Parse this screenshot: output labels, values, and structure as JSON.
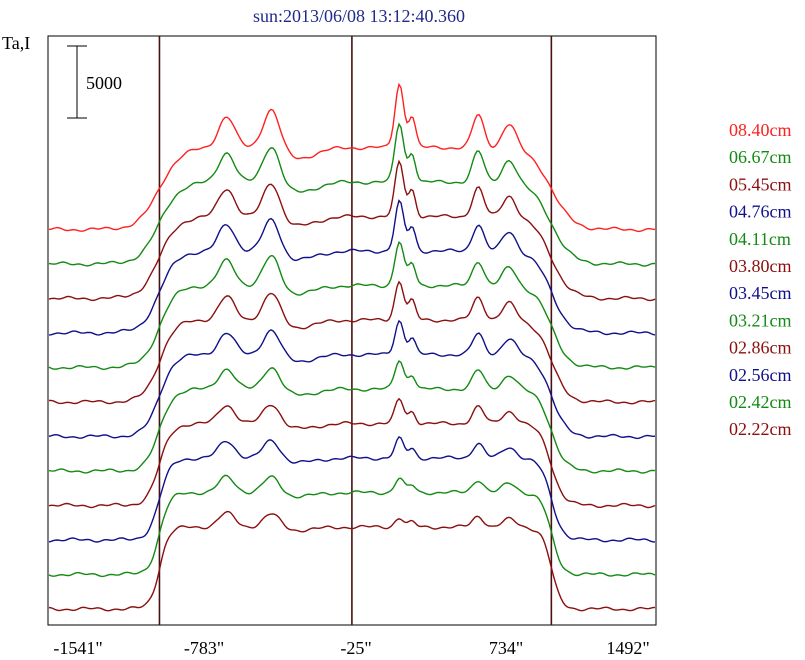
{
  "chart_data": {
    "type": "line",
    "title": "sun:2013/06/08 13:12:40.360",
    "ylabel": "Ta,I",
    "scale_bar_label": "5000",
    "x_tick_labels": [
      "-1541\"",
      "-783\"",
      "-25\"",
      "734\"",
      "1492\""
    ],
    "x_ticks": [
      -1541,
      -783,
      -25,
      734,
      1492
    ],
    "xlim": [
      -1541,
      1492
    ],
    "limb_lines": [
      -985,
      -25,
      970
    ],
    "series": [
      {
        "name": "08.40cm",
        "color": "#ff2020"
      },
      {
        "name": "06.67cm",
        "color": "#138a13"
      },
      {
        "name": "05.45cm",
        "color": "#8b0f0f"
      },
      {
        "name": "04.76cm",
        "color": "#10108a"
      },
      {
        "name": "04.11cm",
        "color": "#138a13"
      },
      {
        "name": "03.80cm",
        "color": "#8b0f0f"
      },
      {
        "name": "03.45cm",
        "color": "#10108a"
      },
      {
        "name": "03.21cm",
        "color": "#138a13"
      },
      {
        "name": "02.86cm",
        "color": "#8b0f0f"
      },
      {
        "name": "02.56cm",
        "color": "#10108a"
      },
      {
        "name": "02.42cm",
        "color": "#138a13"
      },
      {
        "name": "02.22cm",
        "color": "#8b0f0f"
      }
    ],
    "grid": false
  }
}
